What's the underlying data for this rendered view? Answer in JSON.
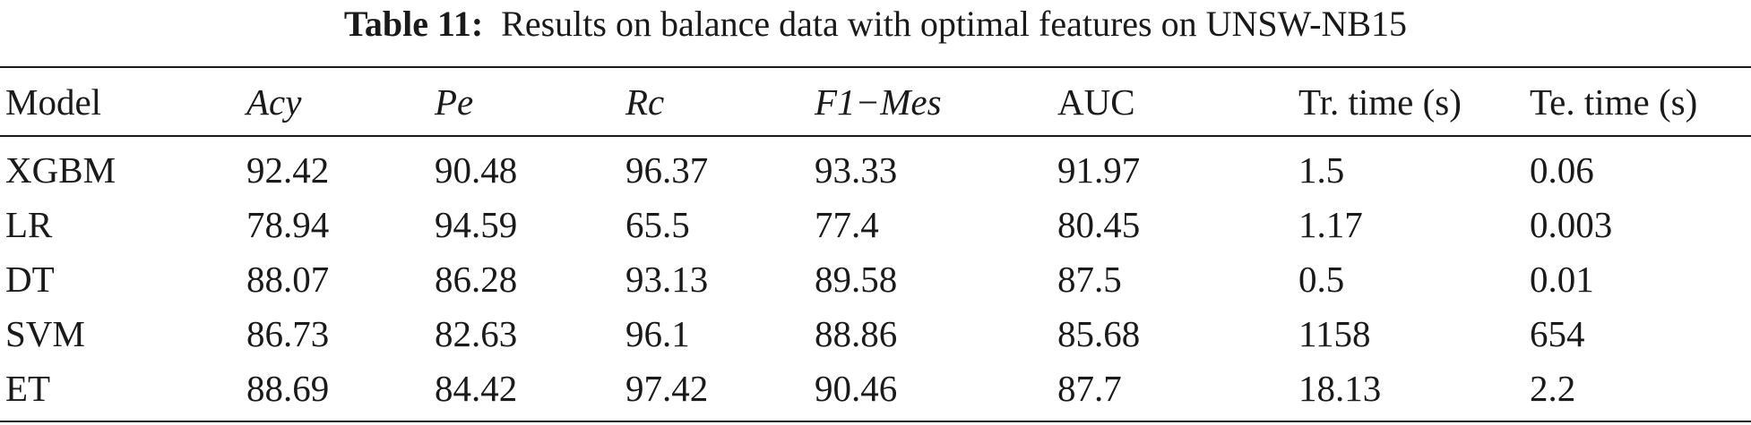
{
  "caption": {
    "label": "Table 11:",
    "text": "Results on balance data with optimal features on UNSW-NB15"
  },
  "table": {
    "headers": [
      "Model",
      "Acy",
      "Pe",
      "Rc",
      "F1−Mes",
      "AUC",
      "Tr. time (s)",
      "Te. time (s)"
    ],
    "rows": [
      [
        "XGBM",
        "92.42",
        "90.48",
        "96.37",
        "93.33",
        "91.97",
        "1.5",
        "0.06"
      ],
      [
        "LR",
        "78.94",
        "94.59",
        "65.5",
        "77.4",
        "80.45",
        "1.17",
        "0.003"
      ],
      [
        "DT",
        "88.07",
        "86.28",
        "93.13",
        "89.58",
        "87.5",
        "0.5",
        "0.01"
      ],
      [
        "SVM",
        "86.73",
        "82.63",
        "96.1",
        "88.86",
        "85.68",
        "1158",
        "654"
      ],
      [
        "ET",
        "88.69",
        "84.42",
        "97.42",
        "90.46",
        "87.7",
        "18.13",
        "2.2"
      ]
    ]
  }
}
